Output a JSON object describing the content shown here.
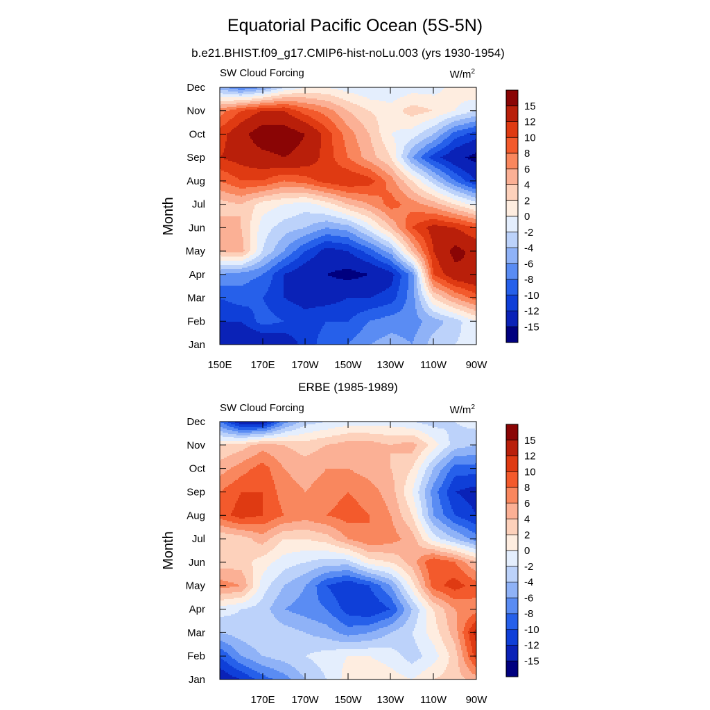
{
  "figure": {
    "title": "Equatorial Pacific Ocean (5S-5N)",
    "colormap": [
      "#00007f",
      "#0a22b7",
      "#0f3fd8",
      "#2660ea",
      "#5a8cf3",
      "#8fb2f7",
      "#bcd2fa",
      "#e4eefd",
      "#feede0",
      "#fdd1bb",
      "#fbb095",
      "#f9875e",
      "#f35a2c",
      "#df3a12",
      "#b91f0a",
      "#8a0505"
    ],
    "colorbar_labels": [
      "15",
      "12",
      "10",
      "8",
      "6",
      "4",
      "2",
      "0",
      "-2",
      "-4",
      "-6",
      "-8",
      "-10",
      "-12",
      "-15"
    ],
    "level_bounds": [
      -99,
      -15,
      -12,
      -10,
      -8,
      -6,
      -4,
      -2,
      0,
      2,
      4,
      6,
      8,
      10,
      12,
      15
    ]
  },
  "chart_data": [
    {
      "type": "heatmap",
      "title": "b.e21.BHIST.f09_g17.CMIP6-hist-noLu.003 (yrs 1930-1954)",
      "left_label": "SW Cloud Forcing",
      "units_base": "W/m",
      "units_exp": "2",
      "xlabel": "",
      "ylabel": "Month",
      "x_ticks": [
        "150E",
        "170E",
        "170W",
        "150W",
        "130W",
        "110W",
        "90W"
      ],
      "y_ticks": [
        "Jan",
        "Feb",
        "Mar",
        "Apr",
        "May",
        "Jun",
        "Jul",
        "Aug",
        "Sep",
        "Oct",
        "Nov",
        "Dec"
      ],
      "x": [
        150,
        160,
        170,
        180,
        190,
        200,
        210,
        220,
        230,
        240,
        250,
        260,
        270
      ],
      "values": [
        [
          -14,
          -15,
          -15,
          -14,
          -11,
          -9,
          -8,
          -6,
          -5,
          -6,
          -3,
          -2,
          -1
        ],
        [
          -12,
          -12,
          -9,
          -10,
          -11,
          -10,
          -10,
          -8,
          -7,
          -7,
          -5,
          -3,
          0
        ],
        [
          -10,
          -9,
          -10,
          -12,
          -13,
          -13,
          -12,
          -12,
          -11,
          -7,
          2,
          6,
          9
        ],
        [
          -6,
          -7,
          -8,
          -12,
          -14,
          -15,
          -16,
          -15,
          -13,
          -7,
          10,
          14,
          15
        ],
        [
          4,
          5,
          -2,
          -6,
          -10,
          -13,
          -12,
          -9,
          -5,
          4,
          12,
          16,
          14
        ],
        [
          5,
          4,
          -1,
          -3,
          -4,
          -6,
          -5,
          -1,
          4,
          10,
          13,
          12,
          10
        ],
        [
          3,
          4,
          1,
          0,
          -1,
          1,
          4,
          6,
          9,
          7,
          5,
          2,
          -1
        ],
        [
          8,
          10,
          10,
          8,
          9,
          11,
          12,
          11,
          7,
          2,
          -3,
          -8,
          -12
        ],
        [
          12,
          13,
          14,
          15,
          14,
          11,
          8,
          5,
          2,
          -6,
          -11,
          -14,
          -16
        ],
        [
          11,
          14,
          17,
          17,
          15,
          11,
          7,
          4,
          0,
          -1,
          -4,
          -9,
          -11
        ],
        [
          7,
          10,
          12,
          12,
          9,
          7,
          4,
          2,
          1,
          3,
          2,
          0,
          -2
        ],
        [
          -5,
          -8,
          -6,
          -2,
          0,
          0,
          -1,
          -2,
          -2,
          -1,
          -1,
          1,
          2
        ]
      ]
    },
    {
      "type": "heatmap",
      "title": "ERBE (1985-1989)",
      "left_label": "SW Cloud Forcing",
      "units_base": "W/m",
      "units_exp": "2",
      "xlabel": "",
      "ylabel": "Month",
      "x_ticks": [
        "170E",
        "170W",
        "150W",
        "130W",
        "110W",
        "90W"
      ],
      "y_ticks": [
        "Jan",
        "Feb",
        "Mar",
        "Apr",
        "May",
        "Jun",
        "Jul",
        "Aug",
        "Sep",
        "Oct",
        "Nov",
        "Dec"
      ],
      "x": [
        150,
        160,
        170,
        180,
        190,
        200,
        210,
        220,
        230,
        240,
        250,
        260,
        270
      ],
      "values": [
        [
          -14,
          -12,
          -9,
          -7,
          -4,
          -2,
          1,
          2,
          1,
          0,
          2,
          3,
          5
        ],
        [
          -10,
          -6,
          -4,
          -3,
          -2,
          -1,
          0,
          0,
          -1,
          -3,
          -1,
          3,
          11
        ],
        [
          -4,
          -3,
          -2,
          -3,
          -4,
          -5,
          -7,
          -6,
          -4,
          -2,
          1,
          5,
          13
        ],
        [
          -1,
          -2,
          -3,
          -6,
          -7,
          -8,
          -11,
          -12,
          -10,
          -4,
          2,
          6,
          7
        ],
        [
          7,
          6,
          -1,
          -4,
          -6,
          -10,
          -12,
          -10,
          -6,
          1,
          9,
          11,
          9
        ],
        [
          3,
          3,
          1,
          -1,
          -2,
          -3,
          -3,
          1,
          2,
          5,
          10,
          8,
          4
        ],
        [
          2,
          3,
          5,
          2,
          2,
          3,
          6,
          8,
          7,
          5,
          -1,
          -4,
          -7
        ],
        [
          9,
          11,
          10,
          8,
          7,
          8,
          9,
          8,
          6,
          2,
          -6,
          -10,
          -12
        ],
        [
          8,
          10,
          10,
          7,
          6,
          7,
          8,
          7,
          5,
          0,
          -7,
          -12,
          -13
        ],
        [
          5,
          7,
          9,
          6,
          5,
          6,
          6,
          5,
          4,
          2,
          -4,
          -9,
          -9
        ],
        [
          2,
          3,
          5,
          4,
          3,
          4,
          5,
          5,
          4,
          5,
          1,
          -3,
          -4
        ],
        [
          -8,
          -14,
          -14,
          -7,
          -3,
          -2,
          -1,
          -1,
          -1,
          -2,
          -3,
          -2,
          -1
        ]
      ]
    }
  ]
}
